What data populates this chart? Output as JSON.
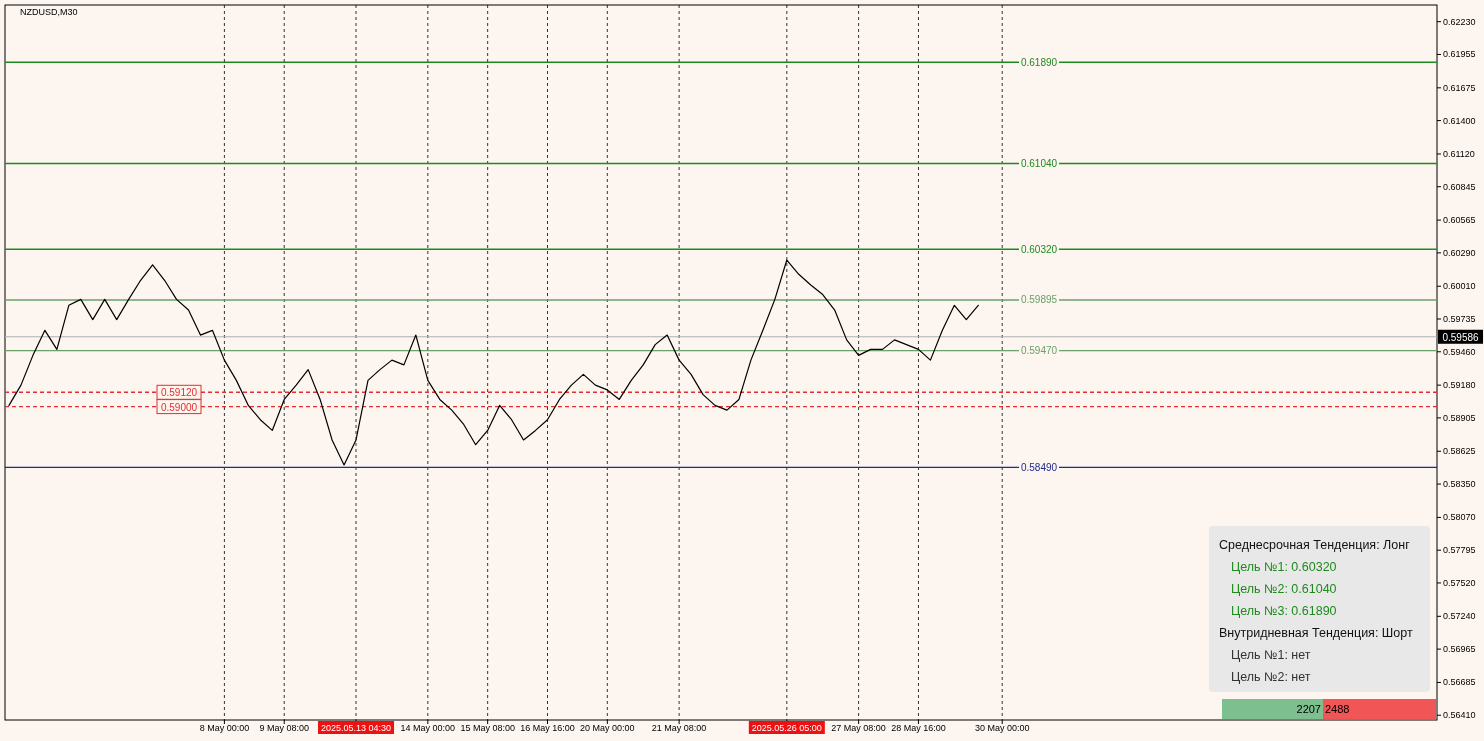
{
  "chart_data": {
    "type": "line",
    "title": "NZDUSD,M30",
    "categories": [
      null,
      null,
      null,
      null,
      null,
      null,
      null,
      null,
      null,
      null,
      null,
      null,
      null,
      null,
      null,
      null,
      null,
      null,
      "8 May 00:00",
      null,
      null,
      null,
      null,
      "9 May 08:00",
      null,
      null,
      null,
      null,
      null,
      "2025.05.13 04:30",
      null,
      null,
      null,
      null,
      null,
      "14 May 00:00",
      null,
      null,
      null,
      null,
      "15 May 08:00",
      null,
      null,
      null,
      null,
      "16 May 16:00",
      null,
      null,
      null,
      null,
      "20 May 00:00",
      null,
      null,
      null,
      null,
      null,
      "21 May 08:00",
      null,
      null,
      null,
      null,
      null,
      null,
      null,
      null,
      "2025.05.26 05:00",
      null,
      null,
      null,
      null,
      null,
      "27 May 08:00",
      null,
      null,
      null,
      null,
      "28 May 16:00",
      null,
      null,
      null,
      null,
      null,
      null,
      "30 May 00:00",
      null,
      null,
      null,
      null,
      null,
      null,
      null,
      null,
      null,
      null,
      null,
      null,
      null,
      null,
      null,
      null,
      null,
      null,
      null,
      null,
      null,
      null,
      null,
      null,
      null,
      null,
      null,
      null,
      null,
      null,
      null,
      null,
      null,
      null,
      null,
      null
    ],
    "series": [
      {
        "color": "#000000",
        "values": [
          0.5901,
          0.5918,
          0.5943,
          0.5964,
          0.5948,
          0.5985,
          0.599,
          0.5973,
          0.599,
          0.5973,
          0.599,
          0.6006,
          0.6019,
          0.6006,
          0.599,
          0.5981,
          0.596,
          0.5964,
          0.5939,
          0.5922,
          0.5901,
          0.5889,
          0.588,
          0.5906,
          0.5918,
          0.5931,
          0.5906,
          0.5872,
          0.5851,
          0.5872,
          0.5922,
          0.5931,
          0.5939,
          0.5935,
          0.596,
          0.5922,
          0.5906,
          0.5897,
          0.5885,
          0.5868,
          0.588,
          0.5901,
          0.5889,
          0.5872,
          0.588,
          0.5889,
          0.5906,
          0.5918,
          0.5927,
          0.5918,
          0.5914,
          0.5906,
          0.5922,
          0.5935,
          0.5952,
          0.596,
          0.5939,
          0.5927,
          0.591,
          0.5901,
          0.5897,
          0.5906,
          0.5939,
          0.5964,
          0.599,
          0.6023,
          0.6011,
          0.6002,
          0.5994,
          0.5981,
          0.5956,
          0.5943,
          0.5948,
          0.5948,
          0.5956,
          0.5952,
          0.5948,
          0.5939,
          0.5964,
          0.5985,
          0.5973,
          0.5985,
          null,
          null,
          null,
          null,
          null,
          null,
          null,
          null,
          null,
          null,
          null,
          null,
          null,
          null,
          null,
          null,
          null,
          null,
          null,
          null,
          null,
          null,
          null,
          null,
          null,
          null,
          null,
          null,
          null,
          null,
          null,
          null,
          null,
          null,
          null,
          null,
          null,
          null
        ]
      }
    ],
    "ylim": [
      0.5637,
      0.6237
    ],
    "yticks": [
      {
        "value": 0.6223,
        "label": "0.62230"
      },
      {
        "value": 0.61955,
        "label": "0.61955"
      },
      {
        "value": 0.61675,
        "label": "0.61675"
      },
      {
        "value": 0.614,
        "label": "0.61400"
      },
      {
        "value": 0.6112,
        "label": "0.61120"
      },
      {
        "value": 0.60845,
        "label": "0.60845"
      },
      {
        "value": 0.60565,
        "label": "0.60565"
      },
      {
        "value": 0.6029,
        "label": "0.60290"
      },
      {
        "value": 0.6001,
        "label": "0.60010"
      },
      {
        "value": 0.59735,
        "label": "0.59735"
      },
      {
        "value": 0.5946,
        "label": "0.59460"
      },
      {
        "value": 0.5918,
        "label": "0.59180"
      },
      {
        "value": 0.58905,
        "label": "0.58905"
      },
      {
        "value": 0.58625,
        "label": "0.58625"
      },
      {
        "value": 0.5835,
        "label": "0.58350"
      },
      {
        "value": 0.5807,
        "label": "0.58070"
      },
      {
        "value": 0.57795,
        "label": "0.57795"
      },
      {
        "value": 0.5752,
        "label": "0.57520"
      },
      {
        "value": 0.5724,
        "label": "0.57240"
      },
      {
        "value": 0.56965,
        "label": "0.56965"
      },
      {
        "value": 0.56685,
        "label": "0.56685"
      },
      {
        "value": 0.5641,
        "label": "0.56410"
      }
    ],
    "grid": "x",
    "ref_lines": [
      {
        "axis": "y",
        "value": 0.6189,
        "label": "0.61890",
        "color": "#1e8a1e"
      },
      {
        "axis": "y",
        "value": 0.6104,
        "label": "0.61040",
        "color": "#1e8a1e"
      },
      {
        "axis": "y",
        "value": 0.6032,
        "label": "0.60320",
        "color": "#1e8a1e"
      },
      {
        "axis": "y",
        "value": 0.59895,
        "label": "0.59895",
        "color": "#6aa06a"
      },
      {
        "axis": "y",
        "value": 0.5947,
        "label": "0.59470",
        "color": "#6aa06a"
      },
      {
        "axis": "y",
        "value": 0.5849,
        "label": "0.58490",
        "color": "#1f2a8a"
      },
      {
        "axis": "y",
        "value": 0.5912,
        "label": "0.59120",
        "color": "#e03030",
        "line_style": "dashed"
      },
      {
        "axis": "y",
        "value": 0.59,
        "label": "0.59000",
        "color": "#e03030",
        "line_style": "dashed"
      },
      {
        "axis": "y",
        "value": 0.59586,
        "label": "0.59586",
        "color": "#b0b0b0"
      }
    ],
    "annotations": [
      "Среднесрочная Тенденция: Лонг",
      "Цель №1: 0.60320",
      "Цель №2: 0.61040",
      "Цель №3: 0.61890",
      "Внутридневная Тенденция: Шорт",
      "Цель №1: нет",
      "Цель №2: нет",
      "2207",
      "2488"
    ]
  }
}
